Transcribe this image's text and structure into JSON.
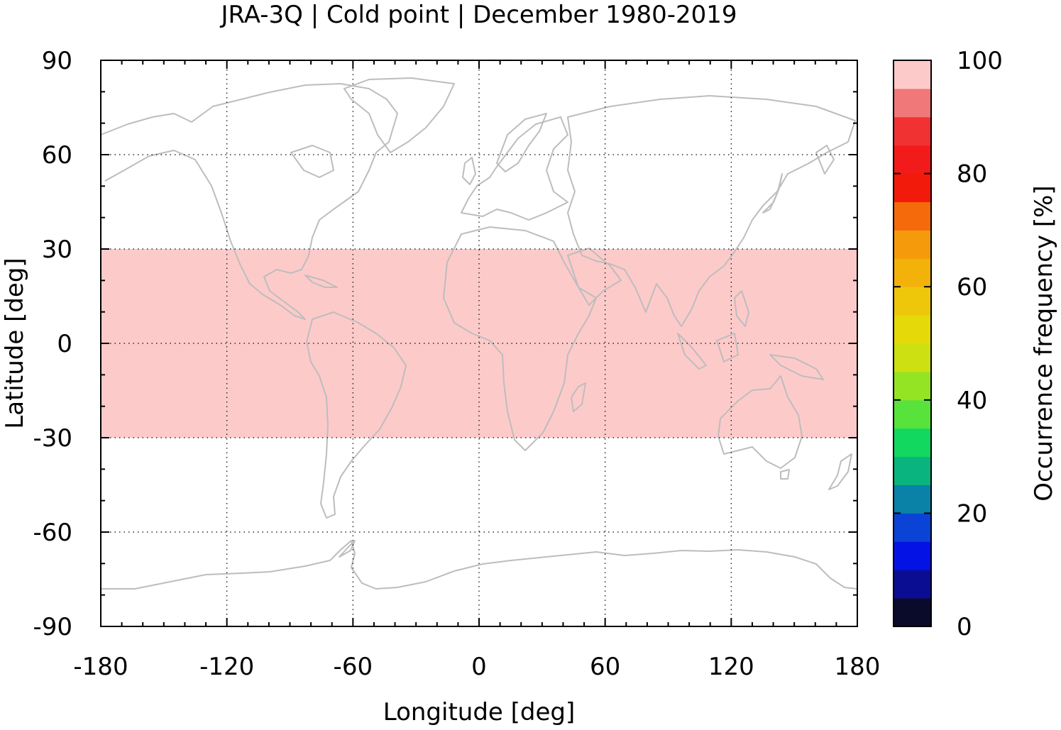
{
  "chart_data": {
    "type": "heatmap",
    "title": "JRA-3Q | Cold point | December 1980-2019",
    "xlabel": "Longitude [deg]",
    "ylabel": "Latitude [deg]",
    "xlim": [
      -180,
      180
    ],
    "ylim": [
      -90,
      90
    ],
    "xticks": [
      -180,
      -120,
      -60,
      0,
      60,
      120,
      180
    ],
    "yticks": [
      90,
      60,
      30,
      0,
      -30,
      -60,
      -90
    ],
    "grid": true,
    "basemap": "world coastlines",
    "regions": [
      {
        "lon_range": [
          -180,
          180
        ],
        "lat_range": [
          -30,
          30
        ],
        "value": 100
      }
    ],
    "colorbar": {
      "label": "Occurrence frequency [%]",
      "range": [
        0,
        100
      ],
      "ticks": [
        0,
        20,
        40,
        60,
        80,
        100
      ],
      "bin_width": 5,
      "colors": [
        "#0a0a2a",
        "#0a0d91",
        "#0512e6",
        "#0a43d6",
        "#0a82a8",
        "#0ab47e",
        "#12d860",
        "#58e23c",
        "#95e424",
        "#cde012",
        "#e5d90a",
        "#eec70a",
        "#f2b20a",
        "#f59a0a",
        "#f56a0a",
        "#f21a0a",
        "#f21a1a",
        "#f03232",
        "#f07878",
        "#fdcaca"
      ]
    },
    "colors": {
      "region_fill": "#fdcaca",
      "coastline": "#bdbdbd"
    }
  }
}
